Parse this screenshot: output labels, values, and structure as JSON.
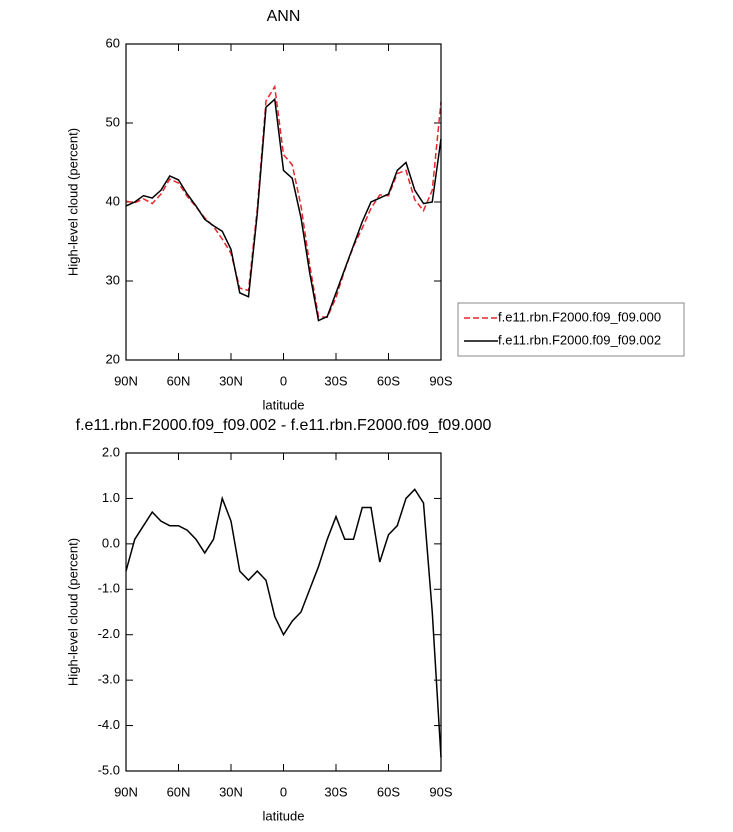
{
  "chart_data": [
    {
      "type": "line",
      "title": "ANN",
      "ylabel": "High-level cloud (percent)",
      "xlabel": "latitude",
      "x": [
        90,
        85,
        80,
        75,
        70,
        65,
        60,
        55,
        50,
        45,
        40,
        35,
        30,
        25,
        20,
        15,
        10,
        5,
        0,
        -5,
        -10,
        -15,
        -20,
        -25,
        -30,
        -35,
        -40,
        -45,
        -50,
        -55,
        -60,
        -65,
        -70,
        -75,
        -80,
        -85,
        -90
      ],
      "series": [
        {
          "name": "f.e11.rbn.F2000.f09_f09.000",
          "color": "#e8262b",
          "style": "dashed",
          "values": [
            40.1,
            39.9,
            40.4,
            39.8,
            41.0,
            42.9,
            42.4,
            40.7,
            39.4,
            38.0,
            36.9,
            35.3,
            33.5,
            29.1,
            28.8,
            39.1,
            52.8,
            54.6,
            46.0,
            44.7,
            39.5,
            32.0,
            25.5,
            25.4,
            27.9,
            31.4,
            34.4,
            36.7,
            39.2,
            40.9,
            40.8,
            43.6,
            44.0,
            40.3,
            38.9,
            41.5,
            52.7
          ]
        },
        {
          "name": "f.e11.rbn.F2000.f09_f09.002",
          "color": "#000000",
          "style": "solid",
          "values": [
            39.5,
            40.0,
            40.8,
            40.5,
            41.5,
            43.3,
            42.8,
            41.0,
            39.5,
            37.8,
            37.0,
            36.3,
            34.0,
            28.5,
            28.0,
            38.5,
            52.0,
            53.0,
            44.0,
            43.0,
            38.0,
            31.0,
            25.0,
            25.5,
            28.5,
            31.5,
            34.5,
            37.5,
            40.0,
            40.5,
            41.0,
            44.0,
            45.0,
            41.5,
            39.8,
            40.0,
            48.0
          ]
        }
      ],
      "xlim": [
        90,
        -90
      ],
      "xticks": [
        {
          "value": 90,
          "label": "90N"
        },
        {
          "value": 60,
          "label": "60N"
        },
        {
          "value": 30,
          "label": "30N"
        },
        0,
        {
          "value": -30,
          "label": "30S"
        },
        {
          "value": -60,
          "label": "60S"
        },
        {
          "value": -90,
          "label": "90S"
        }
      ],
      "ylim": [
        20,
        60
      ],
      "yticks": [
        20,
        30,
        40,
        50,
        60
      ],
      "legend": "right"
    },
    {
      "type": "line",
      "title": "f.e11.rbn.F2000.f09_f09.002 - f.e11.rbn.F2000.f09_f09.000",
      "ylabel": "High-level cloud (percent)",
      "xlabel": "latitude",
      "x": [
        90,
        85,
        80,
        75,
        70,
        65,
        60,
        55,
        50,
        45,
        40,
        35,
        30,
        25,
        20,
        15,
        10,
        5,
        0,
        -5,
        -10,
        -15,
        -20,
        -25,
        -30,
        -35,
        -40,
        -45,
        -50,
        -55,
        -60,
        -65,
        -70,
        -75,
        -80,
        -85,
        -90
      ],
      "series": [
        {
          "color": "#000000",
          "style": "solid",
          "values": [
            -0.6,
            0.1,
            0.4,
            0.7,
            0.5,
            0.4,
            0.4,
            0.3,
            0.1,
            -0.2,
            0.1,
            1.0,
            0.5,
            -0.6,
            -0.8,
            -0.6,
            -0.8,
            -1.6,
            -2.0,
            -1.7,
            -1.5,
            -1.0,
            -0.5,
            0.1,
            0.6,
            0.1,
            0.1,
            0.8,
            0.8,
            -0.4,
            0.2,
            0.4,
            1.0,
            1.2,
            0.9,
            -1.5,
            -4.7
          ]
        }
      ],
      "xlim": [
        90,
        -90
      ],
      "xticks": [
        {
          "value": 90,
          "label": "90N"
        },
        {
          "value": 60,
          "label": "60N"
        },
        {
          "value": 30,
          "label": "30N"
        },
        0,
        {
          "value": -30,
          "label": "30S"
        },
        {
          "value": -60,
          "label": "60S"
        },
        {
          "value": -90,
          "label": "90S"
        }
      ],
      "ylim": [
        -5,
        2
      ],
      "yticks": [
        {
          "value": -5,
          "label": "-5.0"
        },
        {
          "value": -4,
          "label": "-4.0"
        },
        {
          "value": -3,
          "label": "-3.0"
        },
        {
          "value": -2,
          "label": "-2.0"
        },
        {
          "value": -1,
          "label": "-1.0"
        },
        {
          "value": 0,
          "label": "0.0"
        },
        {
          "value": 1,
          "label": "1.0"
        },
        {
          "value": 2,
          "label": "2.0"
        }
      ]
    }
  ]
}
